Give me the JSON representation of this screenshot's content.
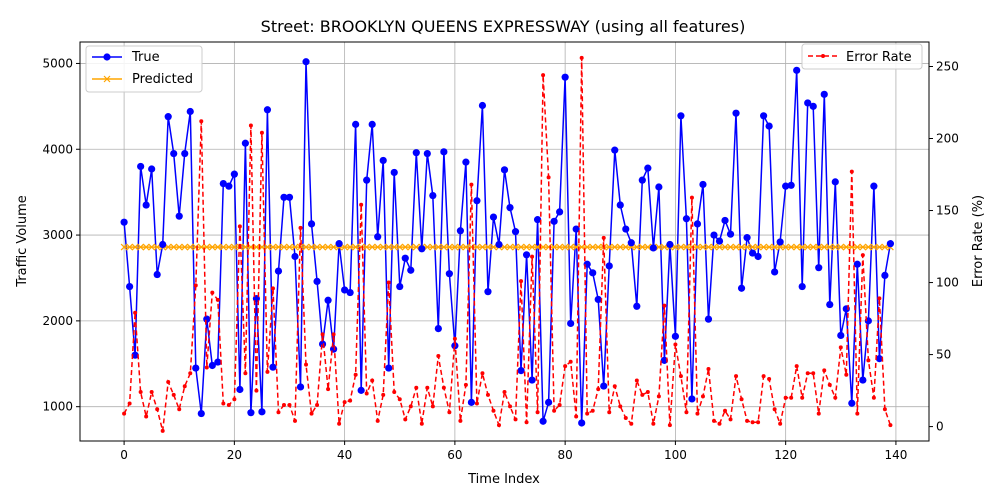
{
  "chart_data": {
    "type": "line",
    "title": "Street: BROOKLYN QUEENS EXPRESSWAY (using all features)",
    "xlabel": "Time Index",
    "ylabel": "Traffic Volume",
    "y2label": "Error Rate (%)",
    "xlim": [
      -8,
      146
    ],
    "ylim": [
      600,
      5250
    ],
    "y2lim": [
      -10,
      267
    ],
    "xticks": [
      0,
      20,
      40,
      60,
      80,
      100,
      120,
      140
    ],
    "yticks": [
      1000,
      2000,
      3000,
      4000,
      5000
    ],
    "y2ticks": [
      0,
      50,
      100,
      150,
      200,
      250
    ],
    "grid": true,
    "legend_left_position": "top-left",
    "legend_right_position": "top-right",
    "series": [
      {
        "name": "True",
        "axis": "left",
        "color": "#0000ff",
        "marker": "circle",
        "linestyle": "solid",
        "values": [
          3150,
          2400,
          1600,
          3800,
          3350,
          3770,
          2540,
          2890,
          4380,
          3950,
          3220,
          3950,
          4440,
          1450,
          920,
          2020,
          1480,
          1520,
          3600,
          3570,
          3710,
          1200,
          4070,
          930,
          2260,
          940,
          4460,
          1460,
          2580,
          3440,
          3440,
          2750,
          1230,
          5020,
          3130,
          2460,
          1730,
          2240,
          1670,
          2900,
          2360,
          2330,
          4290,
          1190,
          3640,
          4290,
          2980,
          3870,
          1450,
          3730,
          2400,
          2730,
          2590,
          3960,
          2840,
          3950,
          3460,
          1910,
          3970,
          2550,
          1710,
          3050,
          3850,
          1050,
          3400,
          4510,
          2340,
          3210,
          2890,
          3760,
          3320,
          3040,
          1420,
          2770,
          1310,
          3180,
          830,
          1050,
          3160,
          3270,
          4840,
          1970,
          3070,
          810,
          2660,
          2560,
          2250,
          1240,
          2640,
          3990,
          3350,
          3070,
          2910,
          2170,
          3640,
          3780,
          2850,
          3560,
          1540,
          2890,
          1820,
          4390,
          3190,
          1090,
          3130,
          3590,
          2020,
          3000,
          2930,
          3170,
          3010,
          4420,
          2380,
          2970,
          2790,
          2750,
          4390,
          4270,
          2570,
          2920,
          3570,
          3580,
          4920,
          2400,
          4540,
          4500,
          2620,
          4640,
          2190,
          3620,
          1830,
          2140,
          1040,
          2660,
          1310,
          2000,
          3570,
          1560,
          2530,
          2900
        ]
      },
      {
        "name": "Predicted",
        "axis": "left",
        "color": "#ffa500",
        "marker": "x",
        "linestyle": "solid",
        "constant_value": 2860
      },
      {
        "name": "Error Rate",
        "axis": "right",
        "color": "#ff0000",
        "marker": "point",
        "linestyle": "dashed",
        "values": [
          9,
          16,
          79,
          24,
          7,
          24,
          12,
          -3,
          31,
          22,
          12,
          28,
          37,
          98,
          212,
          41,
          93,
          88,
          16,
          15,
          19,
          139,
          37,
          209,
          25,
          204,
          38,
          96,
          10,
          15,
          15,
          4,
          138,
          43,
          9,
          15,
          64,
          26,
          64,
          2,
          17,
          18,
          36,
          154,
          23,
          32,
          4,
          22,
          100,
          24,
          19,
          5,
          14,
          27,
          2,
          27,
          14,
          49,
          27,
          10,
          61,
          4,
          29,
          168,
          16,
          37,
          22,
          11,
          1,
          24,
          14,
          5,
          101,
          3,
          118,
          10,
          244,
          173,
          11,
          15,
          42,
          45,
          7,
          256,
          9,
          11,
          26,
          131,
          10,
          28,
          14,
          6,
          2,
          32,
          22,
          24,
          2,
          21,
          84,
          1,
          57,
          35,
          10,
          159,
          9,
          21,
          40,
          4,
          2,
          11,
          5,
          35,
          19,
          4,
          3,
          3,
          35,
          33,
          12,
          2,
          20,
          20,
          42,
          20,
          37,
          37,
          9,
          39,
          29,
          20,
          55,
          36,
          177,
          9,
          119,
          46,
          20,
          89,
          12,
          1
        ]
      }
    ]
  }
}
